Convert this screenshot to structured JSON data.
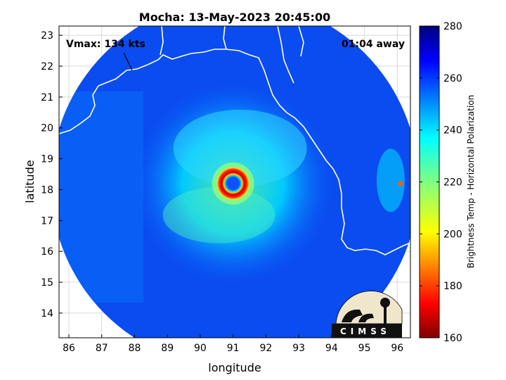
{
  "chart_data": {
    "type": "heatmap",
    "title": "Mocha: 13-May-2023 20:45:00",
    "xlabel": "longitude",
    "ylabel": "latitude",
    "xlim": [
      85.7,
      96.4
    ],
    "ylim": [
      13.2,
      23.3
    ],
    "xticks": [
      86,
      87,
      88,
      89,
      90,
      91,
      92,
      93,
      94,
      95,
      96
    ],
    "yticks": [
      14,
      15,
      16,
      17,
      18,
      19,
      20,
      21,
      22,
      23
    ],
    "grid": true,
    "colorbar": {
      "label": "Brightness Temp - Horizontal Polarization",
      "min": 160,
      "max": 280,
      "ticks": [
        160,
        180,
        200,
        220,
        240,
        260,
        280
      ],
      "colormap": "jet",
      "colors": [
        "#7f0000",
        "#ff0000",
        "#ff8000",
        "#ffff00",
        "#80ff80",
        "#00ffff",
        "#0080ff",
        "#0000ff",
        "#00007f"
      ]
    },
    "swath": {
      "center_lon": 91.05,
      "center_lat": 18.2,
      "radius_deg": 5.6,
      "background_temp": 266
    },
    "storm": {
      "eye_lon": 91.0,
      "eye_lat": 18.2,
      "eye_temp": 262,
      "eyewall_temp": 168,
      "band_temp": 225
    },
    "annotations": {
      "vmax": "Vmax: 134 kts",
      "time_away": "01:04 away"
    },
    "coastline_color": "#ffffff",
    "logo": "CIMSS"
  }
}
